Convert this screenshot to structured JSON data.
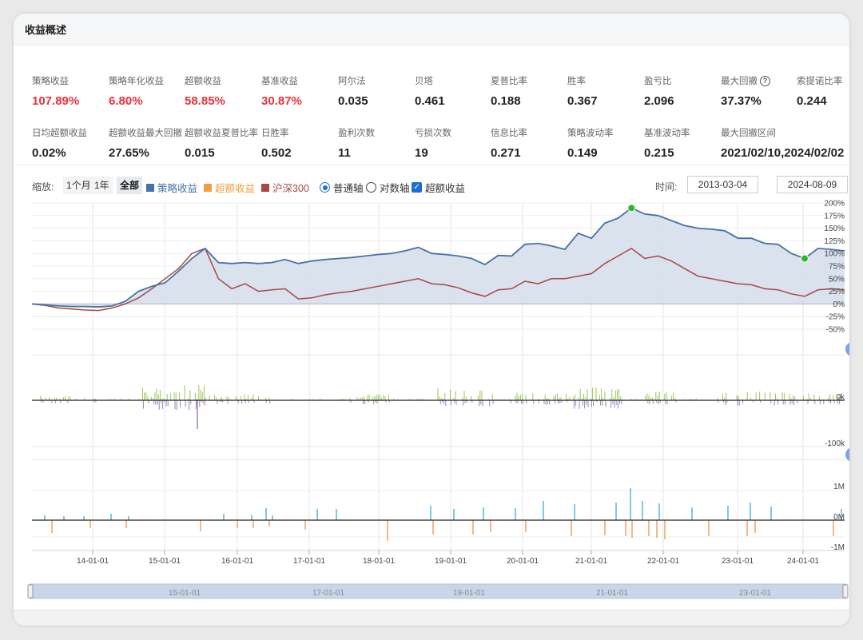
{
  "header": {
    "title": "收益概述"
  },
  "metrics_row1": [
    {
      "label": "策略收益",
      "value": "107.89%",
      "red": true
    },
    {
      "label": "策略年化收益",
      "value": "6.80%",
      "red": true
    },
    {
      "label": "超额收益",
      "value": "58.85%",
      "red": true
    },
    {
      "label": "基准收益",
      "value": "30.87%",
      "red": true
    },
    {
      "label": "阿尔法",
      "value": "0.035",
      "red": false
    },
    {
      "label": "贝塔",
      "value": "0.461",
      "red": false
    },
    {
      "label": "夏普比率",
      "value": "0.188",
      "red": false
    },
    {
      "label": "胜率",
      "value": "0.367",
      "red": false
    },
    {
      "label": "盈亏比",
      "value": "2.096",
      "red": false
    },
    {
      "label": "最大回撤",
      "value": "37.37%",
      "red": false,
      "help": "?"
    },
    {
      "label": "索提诺比率",
      "value": "0.244",
      "red": false
    }
  ],
  "metrics_row2": [
    {
      "label": "日均超额收益",
      "value": "0.02%"
    },
    {
      "label": "超额收益最大回撤",
      "value": "27.65%"
    },
    {
      "label": "超额收益夏普比率",
      "value": "0.015"
    },
    {
      "label": "日胜率",
      "value": "0.502"
    },
    {
      "label": "盈利次数",
      "value": "11"
    },
    {
      "label": "亏损次数",
      "value": "19"
    },
    {
      "label": "信息比率",
      "value": "0.271"
    },
    {
      "label": "策略波动率",
      "value": "0.149"
    },
    {
      "label": "基准波动率",
      "value": "0.215"
    },
    {
      "label": "最大回撤区间",
      "value": "2021/02/10,2024/02/02"
    }
  ],
  "toolbar": {
    "zoom_label": "缩放:",
    "zoom_buttons": [
      "1个月",
      "1年",
      "全部"
    ],
    "active_zoom": "全部",
    "legend": [
      {
        "label": "策略收益",
        "color": "#4572a7"
      },
      {
        "label": "超额收益",
        "color": "#f0a040"
      },
      {
        "label": "沪深300",
        "color": "#aa4643"
      }
    ],
    "axis_options": [
      "普通轴",
      "对数轴"
    ],
    "axis_selected": "普通轴",
    "excess_checkbox_label": "超额收益",
    "excess_checked": true,
    "date_label": "时间:",
    "start_date": "2013-03-04",
    "end_date": "2024-08-09",
    "date_sep": "–"
  },
  "chart_data": {
    "type": "line",
    "x": [
      "13-03",
      "13-06",
      "13-09",
      "13-12",
      "14-03",
      "14-06",
      "14-09",
      "14-11",
      "14-12",
      "15-01",
      "15-02",
      "15-03",
      "15-04",
      "15-05",
      "15-06",
      "15-07",
      "15-08",
      "15-09",
      "15-10",
      "15-12",
      "16-01",
      "16-03",
      "16-06",
      "16-09",
      "16-12",
      "17-03",
      "17-06",
      "17-09",
      "17-12",
      "18-01",
      "18-03",
      "18-06",
      "18-09",
      "18-12",
      "19-01",
      "19-02",
      "19-04",
      "19-06",
      "19-09",
      "19-12",
      "20-02",
      "20-04",
      "20-07",
      "20-09",
      "20-12",
      "21-02",
      "21-04",
      "21-07",
      "21-10",
      "22-01",
      "22-04",
      "22-07",
      "22-10",
      "23-01",
      "23-04",
      "23-07",
      "23-10",
      "24-01",
      "24-02",
      "24-04",
      "24-06",
      "24-08"
    ],
    "series": [
      {
        "name": "策略收益",
        "color": "#4572a7",
        "values": [
          0,
          -2,
          -4,
          -5,
          -5,
          -6,
          -4,
          5,
          25,
          35,
          42,
          65,
          90,
          110,
          82,
          80,
          82,
          80,
          82,
          88,
          80,
          85,
          88,
          90,
          92,
          95,
          98,
          100,
          105,
          112,
          100,
          98,
          95,
          90,
          78,
          96,
          95,
          118,
          120,
          115,
          108,
          140,
          130,
          160,
          170,
          190,
          178,
          175,
          165,
          155,
          150,
          148,
          145,
          130,
          130,
          120,
          118,
          100,
          90,
          110,
          108,
          105
        ]
      },
      {
        "name": "沪深300",
        "color": "#aa4643",
        "values": [
          0,
          -3,
          -8,
          -10,
          -12,
          -13,
          -8,
          0,
          12,
          30,
          50,
          70,
          100,
          110,
          50,
          30,
          40,
          25,
          28,
          30,
          10,
          12,
          18,
          22,
          25,
          30,
          35,
          40,
          45,
          50,
          40,
          38,
          32,
          22,
          15,
          28,
          30,
          45,
          40,
          50,
          50,
          55,
          60,
          80,
          95,
          110,
          90,
          95,
          85,
          70,
          55,
          50,
          45,
          40,
          38,
          30,
          28,
          20,
          15,
          28,
          30,
          28
        ]
      }
    ],
    "y_ticks": [
      "200%",
      "175%",
      "150%",
      "125%",
      "100%",
      "75%",
      "50%",
      "25%",
      "0%",
      "-25%",
      "-50%"
    ],
    "ylim": [
      -50,
      200
    ],
    "x_ticks": [
      "14-01-01",
      "15-01-01",
      "16-01-01",
      "17-01-01",
      "18-01-01",
      "19-01-01",
      "20-01-01",
      "21-01-01",
      "22-01-01",
      "23-01-01",
      "24-01-01"
    ],
    "markers": [
      {
        "label": "max",
        "x": "21-02",
        "value": 190,
        "color": "#2db52d"
      },
      {
        "label": "min",
        "x": "24-02",
        "value": 90,
        "color": "#2db52d"
      }
    ],
    "panel2_ticks": [
      "0k",
      "-100k"
    ],
    "panel3_ticks": [
      "1M",
      "0M",
      "-1M"
    ],
    "navigator_ticks": [
      "15-01-01",
      "17-01-01",
      "19-01-01",
      "21-01-01",
      "23-01-01"
    ],
    "colors": {
      "bar_pos_green": "#9ec45a",
      "bar_neg_purple": "#9a82c0",
      "bar_pos_blue": "#2fa4c9",
      "bar_neg_orange": "#e88c3c",
      "area_fill": "#d6dfeb",
      "navigator": "#c9d6e8"
    }
  }
}
